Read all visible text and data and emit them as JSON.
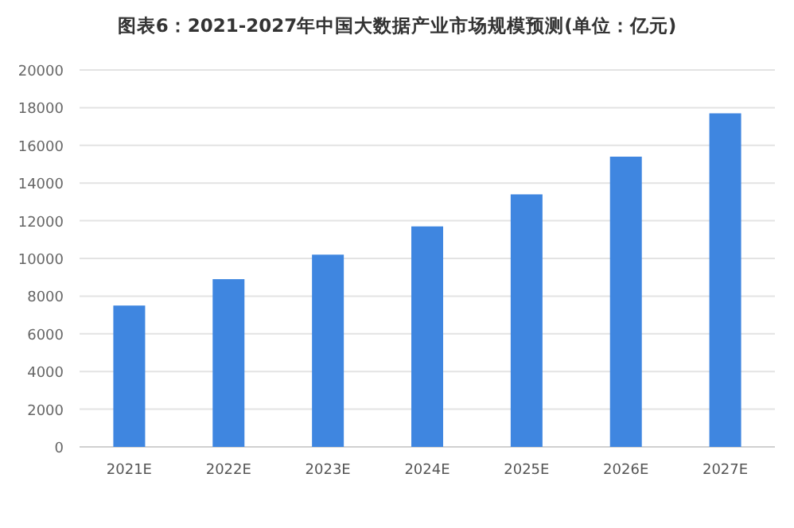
{
  "chart_data": {
    "type": "bar",
    "title": "图表6：2021-2027年中国大数据产业市场规模预测(单位：亿元)",
    "categories": [
      "2021E",
      "2022E",
      "2023E",
      "2024E",
      "2025E",
      "2026E",
      "2027E"
    ],
    "values": [
      7500,
      8900,
      10200,
      11700,
      13400,
      15400,
      17700
    ],
    "color": "#3f86e0",
    "ylim": [
      0,
      20000
    ],
    "yticks": [
      0,
      2000,
      4000,
      6000,
      8000,
      10000,
      12000,
      14000,
      16000,
      18000,
      20000
    ],
    "grid": "y"
  }
}
